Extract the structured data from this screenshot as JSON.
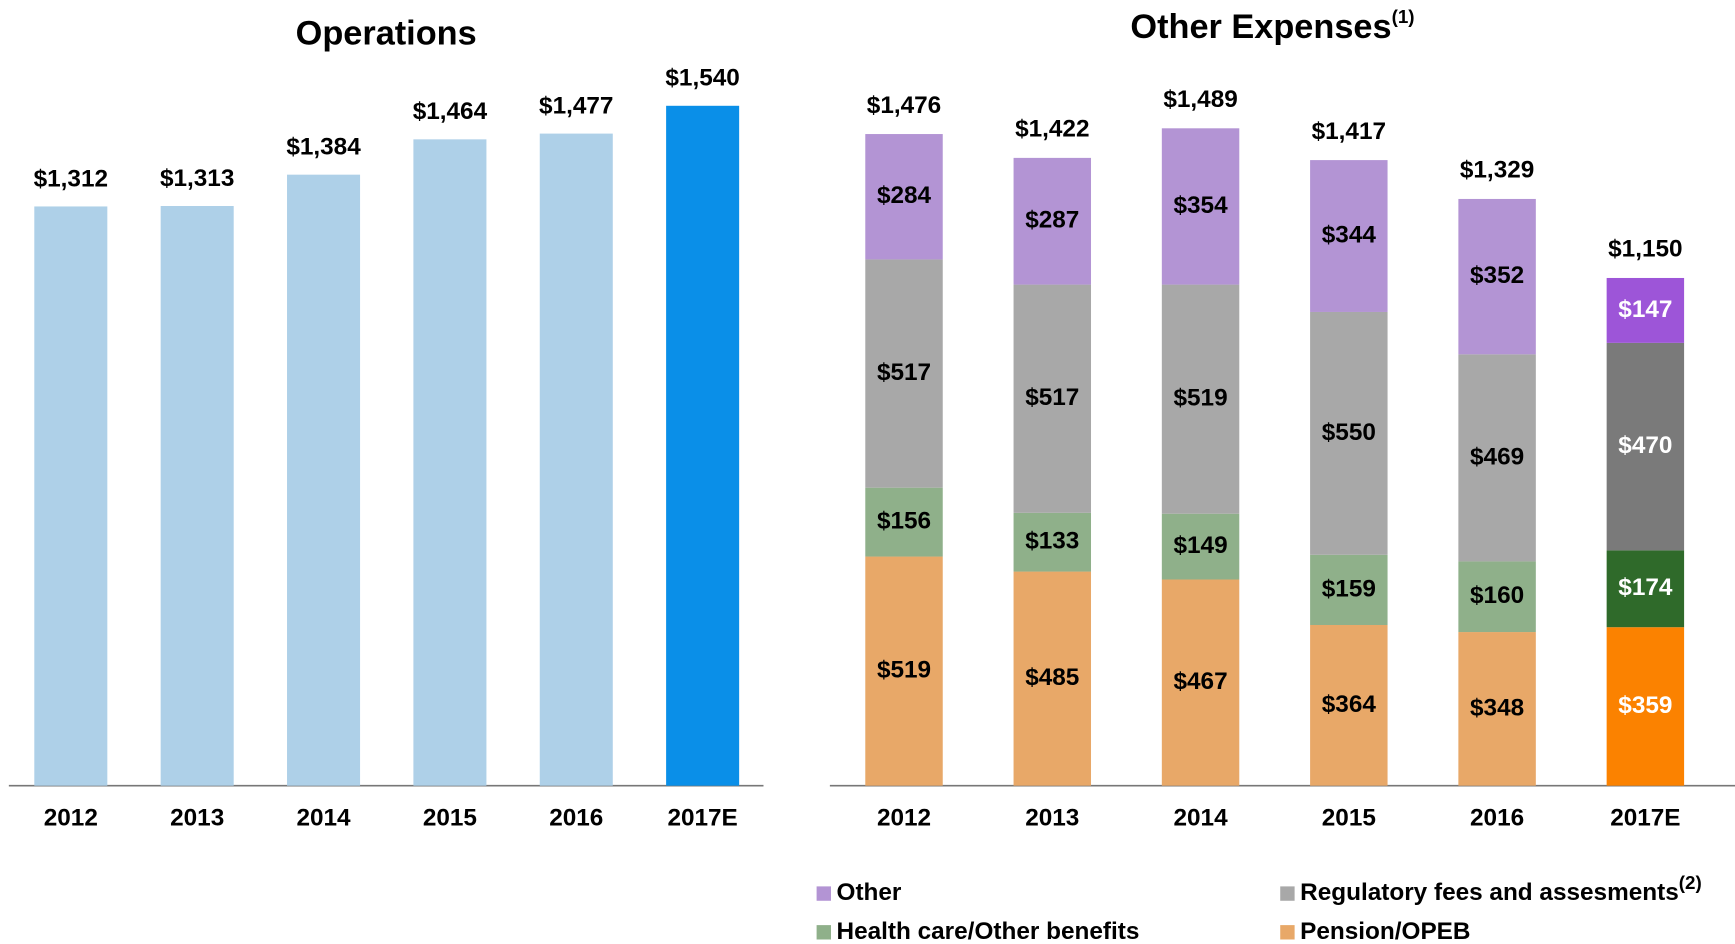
{
  "chart_data": [
    {
      "type": "bar",
      "title": "Operations",
      "categories": [
        "2012",
        "2013",
        "2014",
        "2015",
        "2016",
        "2017E"
      ],
      "values": [
        1312,
        1313,
        1384,
        1464,
        1477,
        1540
      ],
      "value_labels": [
        "$1,312",
        "$1,313",
        "$1,384",
        "$1,464",
        "$1,477",
        "$1,540"
      ],
      "colors": [
        "#aed0e8",
        "#aed0e8",
        "#aed0e8",
        "#aed0e8",
        "#aed0e8",
        "#0a8fe8"
      ]
    },
    {
      "type": "stacked_bar",
      "title": "Other Expenses",
      "title_note": "(1)",
      "categories": [
        "2012",
        "2013",
        "2014",
        "2015",
        "2016",
        "2017E"
      ],
      "totals": [
        1476,
        1422,
        1489,
        1417,
        1329,
        1150
      ],
      "total_labels": [
        "$1,476",
        "$1,422",
        "$1,489",
        "$1,417",
        "$1,329",
        "$1,150"
      ],
      "series": [
        {
          "name": "Pension/OPEB",
          "color": "#e8a868",
          "colors": [
            "#e8a868",
            "#e8a868",
            "#e8a868",
            "#e8a868",
            "#e8a868",
            "#fb8200"
          ],
          "values": [
            519,
            485,
            467,
            364,
            348,
            359
          ],
          "value_labels": [
            "$519",
            "$485",
            "$467",
            "$364",
            "$348",
            "$359"
          ]
        },
        {
          "name": "Health care/Other benefits",
          "color": "#8fb08a",
          "colors": [
            "#8fb08a",
            "#8fb08a",
            "#8fb08a",
            "#8fb08a",
            "#8fb08a",
            "#2f6a2a"
          ],
          "values": [
            156,
            133,
            149,
            159,
            160,
            174
          ],
          "value_labels": [
            "$156",
            "$133",
            "$149",
            "$159",
            "$160",
            "$174"
          ]
        },
        {
          "name": "Regulatory fees and assesments",
          "note": "(2)",
          "color": "#a8a8a8",
          "colors": [
            "#a8a8a8",
            "#a8a8a8",
            "#a8a8a8",
            "#a8a8a8",
            "#a8a8a8",
            "#7a7a7a"
          ],
          "values": [
            517,
            517,
            519,
            550,
            469,
            470
          ],
          "value_labels": [
            "$517",
            "$517",
            "$519",
            "$550",
            "$469",
            "$470"
          ]
        },
        {
          "name": "Other",
          "color": "#b394d4",
          "colors": [
            "#b394d4",
            "#b394d4",
            "#b394d4",
            "#b394d4",
            "#b394d4",
            "#9d55d8"
          ],
          "values": [
            284,
            287,
            354,
            344,
            352,
            147
          ],
          "value_labels": [
            "$284",
            "$287",
            "$354",
            "$344",
            "$352",
            "$147"
          ]
        }
      ]
    }
  ]
}
